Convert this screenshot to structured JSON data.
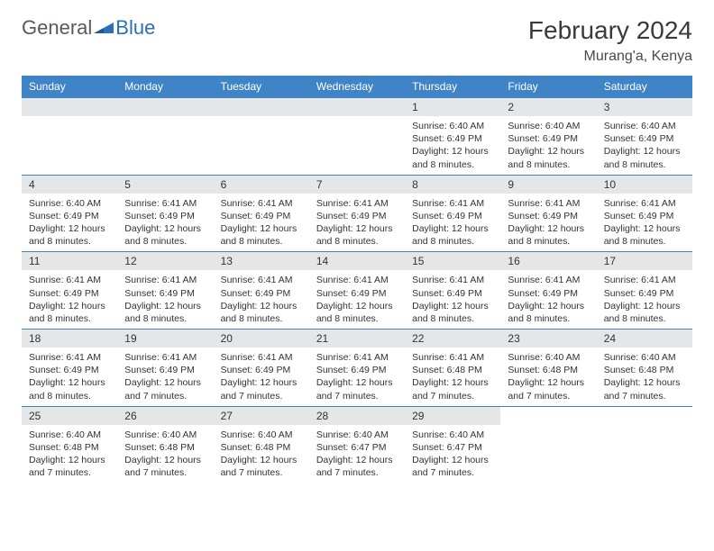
{
  "logo": {
    "general": "General",
    "blue": "Blue"
  },
  "header": {
    "month_title": "February 2024",
    "location": "Murang'a, Kenya"
  },
  "colors": {
    "header_bg": "#3e84c6",
    "header_text": "#ffffff",
    "daynum_bg": "#e4e6e8",
    "border": "#3e84c6",
    "logo_gray": "#555a5f",
    "logo_blue": "#2e6fb5"
  },
  "daynames": [
    "Sunday",
    "Monday",
    "Tuesday",
    "Wednesday",
    "Thursday",
    "Friday",
    "Saturday"
  ],
  "weeks": [
    [
      null,
      null,
      null,
      null,
      {
        "n": "1",
        "sr": "Sunrise: 6:40 AM",
        "ss": "Sunset: 6:49 PM",
        "dl": "Daylight: 12 hours and 8 minutes."
      },
      {
        "n": "2",
        "sr": "Sunrise: 6:40 AM",
        "ss": "Sunset: 6:49 PM",
        "dl": "Daylight: 12 hours and 8 minutes."
      },
      {
        "n": "3",
        "sr": "Sunrise: 6:40 AM",
        "ss": "Sunset: 6:49 PM",
        "dl": "Daylight: 12 hours and 8 minutes."
      }
    ],
    [
      {
        "n": "4",
        "sr": "Sunrise: 6:40 AM",
        "ss": "Sunset: 6:49 PM",
        "dl": "Daylight: 12 hours and 8 minutes."
      },
      {
        "n": "5",
        "sr": "Sunrise: 6:41 AM",
        "ss": "Sunset: 6:49 PM",
        "dl": "Daylight: 12 hours and 8 minutes."
      },
      {
        "n": "6",
        "sr": "Sunrise: 6:41 AM",
        "ss": "Sunset: 6:49 PM",
        "dl": "Daylight: 12 hours and 8 minutes."
      },
      {
        "n": "7",
        "sr": "Sunrise: 6:41 AM",
        "ss": "Sunset: 6:49 PM",
        "dl": "Daylight: 12 hours and 8 minutes."
      },
      {
        "n": "8",
        "sr": "Sunrise: 6:41 AM",
        "ss": "Sunset: 6:49 PM",
        "dl": "Daylight: 12 hours and 8 minutes."
      },
      {
        "n": "9",
        "sr": "Sunrise: 6:41 AM",
        "ss": "Sunset: 6:49 PM",
        "dl": "Daylight: 12 hours and 8 minutes."
      },
      {
        "n": "10",
        "sr": "Sunrise: 6:41 AM",
        "ss": "Sunset: 6:49 PM",
        "dl": "Daylight: 12 hours and 8 minutes."
      }
    ],
    [
      {
        "n": "11",
        "sr": "Sunrise: 6:41 AM",
        "ss": "Sunset: 6:49 PM",
        "dl": "Daylight: 12 hours and 8 minutes."
      },
      {
        "n": "12",
        "sr": "Sunrise: 6:41 AM",
        "ss": "Sunset: 6:49 PM",
        "dl": "Daylight: 12 hours and 8 minutes."
      },
      {
        "n": "13",
        "sr": "Sunrise: 6:41 AM",
        "ss": "Sunset: 6:49 PM",
        "dl": "Daylight: 12 hours and 8 minutes."
      },
      {
        "n": "14",
        "sr": "Sunrise: 6:41 AM",
        "ss": "Sunset: 6:49 PM",
        "dl": "Daylight: 12 hours and 8 minutes."
      },
      {
        "n": "15",
        "sr": "Sunrise: 6:41 AM",
        "ss": "Sunset: 6:49 PM",
        "dl": "Daylight: 12 hours and 8 minutes."
      },
      {
        "n": "16",
        "sr": "Sunrise: 6:41 AM",
        "ss": "Sunset: 6:49 PM",
        "dl": "Daylight: 12 hours and 8 minutes."
      },
      {
        "n": "17",
        "sr": "Sunrise: 6:41 AM",
        "ss": "Sunset: 6:49 PM",
        "dl": "Daylight: 12 hours and 8 minutes."
      }
    ],
    [
      {
        "n": "18",
        "sr": "Sunrise: 6:41 AM",
        "ss": "Sunset: 6:49 PM",
        "dl": "Daylight: 12 hours and 8 minutes."
      },
      {
        "n": "19",
        "sr": "Sunrise: 6:41 AM",
        "ss": "Sunset: 6:49 PM",
        "dl": "Daylight: 12 hours and 7 minutes."
      },
      {
        "n": "20",
        "sr": "Sunrise: 6:41 AM",
        "ss": "Sunset: 6:49 PM",
        "dl": "Daylight: 12 hours and 7 minutes."
      },
      {
        "n": "21",
        "sr": "Sunrise: 6:41 AM",
        "ss": "Sunset: 6:49 PM",
        "dl": "Daylight: 12 hours and 7 minutes."
      },
      {
        "n": "22",
        "sr": "Sunrise: 6:41 AM",
        "ss": "Sunset: 6:48 PM",
        "dl": "Daylight: 12 hours and 7 minutes."
      },
      {
        "n": "23",
        "sr": "Sunrise: 6:40 AM",
        "ss": "Sunset: 6:48 PM",
        "dl": "Daylight: 12 hours and 7 minutes."
      },
      {
        "n": "24",
        "sr": "Sunrise: 6:40 AM",
        "ss": "Sunset: 6:48 PM",
        "dl": "Daylight: 12 hours and 7 minutes."
      }
    ],
    [
      {
        "n": "25",
        "sr": "Sunrise: 6:40 AM",
        "ss": "Sunset: 6:48 PM",
        "dl": "Daylight: 12 hours and 7 minutes."
      },
      {
        "n": "26",
        "sr": "Sunrise: 6:40 AM",
        "ss": "Sunset: 6:48 PM",
        "dl": "Daylight: 12 hours and 7 minutes."
      },
      {
        "n": "27",
        "sr": "Sunrise: 6:40 AM",
        "ss": "Sunset: 6:48 PM",
        "dl": "Daylight: 12 hours and 7 minutes."
      },
      {
        "n": "28",
        "sr": "Sunrise: 6:40 AM",
        "ss": "Sunset: 6:47 PM",
        "dl": "Daylight: 12 hours and 7 minutes."
      },
      {
        "n": "29",
        "sr": "Sunrise: 6:40 AM",
        "ss": "Sunset: 6:47 PM",
        "dl": "Daylight: 12 hours and 7 minutes."
      },
      null,
      null
    ]
  ]
}
